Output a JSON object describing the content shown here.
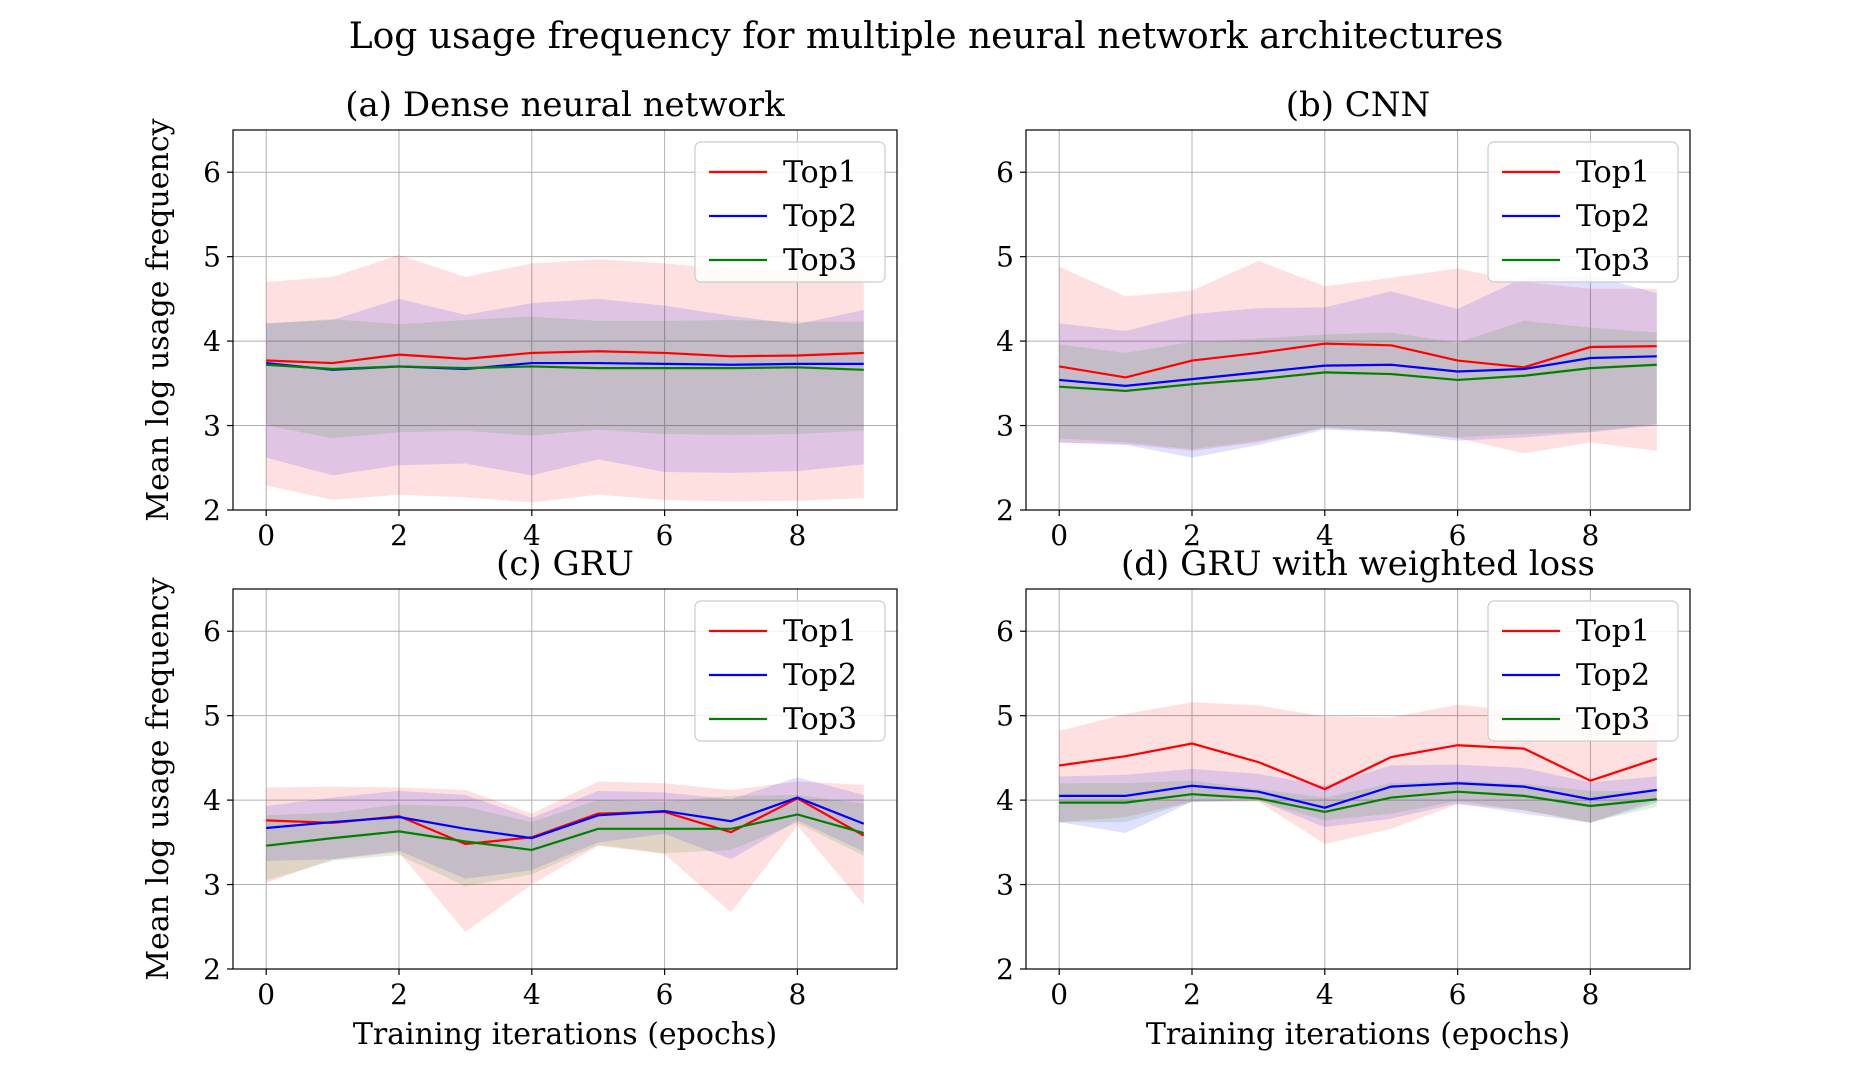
{
  "figure": {
    "title": "Log usage frequency for multiple neural network architectures"
  },
  "chart_data": [
    {
      "type": "line",
      "title": "(a) Dense neural network",
      "xlabel": "",
      "ylabel": "Mean log usage frequency",
      "xlim": [
        -0.5,
        9.5
      ],
      "ylim": [
        2,
        6.5
      ],
      "xticks": [
        0,
        2,
        4,
        6,
        8
      ],
      "yticks": [
        2,
        3,
        4,
        5,
        6
      ],
      "grid": true,
      "legend": "top-right",
      "x": [
        0,
        1,
        2,
        3,
        4,
        5,
        6,
        7,
        8,
        9
      ],
      "series": [
        {
          "name": "Top1",
          "color": "#ff0000",
          "values": [
            3.77,
            3.74,
            3.84,
            3.79,
            3.86,
            3.88,
            3.86,
            3.82,
            3.83,
            3.86
          ],
          "lower": [
            2.29,
            2.12,
            2.18,
            2.15,
            2.09,
            2.18,
            2.12,
            2.1,
            2.11,
            2.14
          ],
          "upper": [
            4.7,
            4.76,
            5.02,
            4.76,
            4.92,
            4.97,
            4.92,
            4.85,
            4.83,
            4.83
          ]
        },
        {
          "name": "Top2",
          "color": "#0000ff",
          "values": [
            3.74,
            3.66,
            3.7,
            3.67,
            3.74,
            3.74,
            3.73,
            3.72,
            3.73,
            3.73
          ],
          "lower": [
            2.62,
            2.41,
            2.53,
            2.55,
            2.41,
            2.6,
            2.45,
            2.44,
            2.46,
            2.54
          ],
          "upper": [
            4.21,
            4.25,
            4.5,
            4.31,
            4.45,
            4.5,
            4.42,
            4.3,
            4.2,
            4.37
          ]
        },
        {
          "name": "Top3",
          "color": "#008000",
          "values": [
            3.72,
            3.67,
            3.7,
            3.68,
            3.7,
            3.68,
            3.68,
            3.68,
            3.69,
            3.66
          ],
          "lower": [
            3.0,
            2.85,
            2.92,
            2.94,
            2.88,
            2.95,
            2.9,
            2.89,
            2.9,
            2.94
          ],
          "upper": [
            4.21,
            4.26,
            4.2,
            4.25,
            4.29,
            4.24,
            4.24,
            4.25,
            4.23,
            4.23
          ]
        }
      ]
    },
    {
      "type": "line",
      "title": "(b) CNN",
      "xlabel": "",
      "ylabel": "",
      "xlim": [
        -0.5,
        9.5
      ],
      "ylim": [
        2,
        6.5
      ],
      "xticks": [
        0,
        2,
        4,
        6,
        8
      ],
      "yticks": [
        2,
        3,
        4,
        5,
        6
      ],
      "grid": true,
      "legend": "top-right",
      "x": [
        0,
        1,
        2,
        3,
        4,
        5,
        6,
        7,
        8,
        9
      ],
      "series": [
        {
          "name": "Top1",
          "color": "#ff0000",
          "values": [
            3.7,
            3.57,
            3.77,
            3.86,
            3.97,
            3.95,
            3.77,
            3.69,
            3.93,
            3.94
          ],
          "lower": [
            2.8,
            2.78,
            2.7,
            2.8,
            2.98,
            2.93,
            2.85,
            2.67,
            2.8,
            2.7
          ],
          "upper": [
            4.88,
            4.53,
            4.6,
            4.95,
            4.65,
            4.75,
            4.86,
            4.7,
            4.62,
            4.62
          ]
        },
        {
          "name": "Top2",
          "color": "#0000ff",
          "values": [
            3.54,
            3.47,
            3.55,
            3.63,
            3.71,
            3.72,
            3.64,
            3.67,
            3.8,
            3.82
          ],
          "lower": [
            2.8,
            2.77,
            2.62,
            2.77,
            2.95,
            2.92,
            2.82,
            2.86,
            2.92,
            3.0
          ],
          "upper": [
            4.21,
            4.12,
            4.32,
            4.39,
            4.4,
            4.59,
            4.38,
            4.75,
            4.78,
            4.57
          ]
        },
        {
          "name": "Top3",
          "color": "#008000",
          "values": [
            3.46,
            3.41,
            3.49,
            3.55,
            3.63,
            3.61,
            3.54,
            3.59,
            3.68,
            3.72
          ],
          "lower": [
            2.85,
            2.8,
            2.72,
            2.82,
            2.97,
            2.93,
            2.86,
            2.9,
            2.93,
            3.02
          ],
          "upper": [
            3.96,
            3.86,
            3.99,
            4.03,
            4.08,
            4.1,
            3.98,
            4.24,
            4.16,
            4.1
          ]
        }
      ]
    },
    {
      "type": "line",
      "title": "(c) GRU",
      "xlabel": "Training iterations (epochs)",
      "ylabel": "Mean log usage frequency",
      "xlim": [
        -0.5,
        9.5
      ],
      "ylim": [
        2,
        6.5
      ],
      "xticks": [
        0,
        2,
        4,
        6,
        8
      ],
      "yticks": [
        2,
        3,
        4,
        5,
        6
      ],
      "grid": true,
      "legend": "top-right",
      "x": [
        0,
        1,
        2,
        3,
        4,
        5,
        6,
        7,
        8,
        9
      ],
      "series": [
        {
          "name": "Top1",
          "color": "#ff0000",
          "values": [
            3.76,
            3.73,
            3.81,
            3.48,
            3.56,
            3.84,
            3.86,
            3.62,
            4.02,
            3.58
          ],
          "lower": [
            3.02,
            3.3,
            3.38,
            2.44,
            3.0,
            3.46,
            3.36,
            2.67,
            3.7,
            2.76
          ],
          "upper": [
            4.15,
            4.16,
            4.15,
            4.12,
            3.84,
            4.22,
            4.2,
            4.12,
            4.22,
            4.18
          ]
        },
        {
          "name": "Top2",
          "color": "#0000ff",
          "values": [
            3.67,
            3.74,
            3.8,
            3.66,
            3.55,
            3.82,
            3.87,
            3.75,
            4.03,
            3.72
          ],
          "lower": [
            3.28,
            3.3,
            3.4,
            3.07,
            3.17,
            3.5,
            3.6,
            3.3,
            3.76,
            3.39
          ],
          "upper": [
            3.93,
            4.03,
            4.11,
            4.06,
            3.79,
            4.11,
            4.09,
            4.01,
            4.27,
            4.06
          ]
        },
        {
          "name": "Top3",
          "color": "#008000",
          "values": [
            3.46,
            3.55,
            3.63,
            3.51,
            3.41,
            3.66,
            3.66,
            3.66,
            3.83,
            3.61
          ],
          "lower": [
            3.05,
            3.28,
            3.35,
            2.98,
            3.12,
            3.47,
            3.37,
            3.41,
            3.73,
            3.34
          ],
          "upper": [
            3.82,
            3.85,
            3.95,
            3.92,
            3.74,
            4.0,
            3.98,
            4.05,
            4.06,
            3.96
          ]
        }
      ]
    },
    {
      "type": "line",
      "title": "(d) GRU with weighted loss",
      "xlabel": "Training iterations (epochs)",
      "ylabel": "",
      "xlim": [
        -0.5,
        9.5
      ],
      "ylim": [
        2,
        6.5
      ],
      "xticks": [
        0,
        2,
        4,
        6,
        8
      ],
      "yticks": [
        2,
        3,
        4,
        5,
        6
      ],
      "grid": true,
      "legend": "top-right",
      "x": [
        0,
        1,
        2,
        3,
        4,
        5,
        6,
        7,
        8,
        9
      ],
      "series": [
        {
          "name": "Top1",
          "color": "#ff0000",
          "values": [
            4.41,
            4.52,
            4.67,
            4.45,
            4.13,
            4.51,
            4.65,
            4.61,
            4.23,
            4.49
          ],
          "lower": [
            3.74,
            3.8,
            3.98,
            3.98,
            3.48,
            3.66,
            3.95,
            3.88,
            3.73,
            4.01
          ],
          "upper": [
            4.82,
            5.02,
            5.16,
            5.12,
            4.99,
            4.98,
            5.13,
            5.05,
            4.97,
            4.92
          ]
        },
        {
          "name": "Top2",
          "color": "#0000ff",
          "values": [
            4.05,
            4.05,
            4.17,
            4.1,
            3.91,
            4.16,
            4.2,
            4.16,
            4.01,
            4.12
          ],
          "lower": [
            3.74,
            3.61,
            3.98,
            4.0,
            3.68,
            3.78,
            3.96,
            3.84,
            3.73,
            3.97
          ],
          "upper": [
            4.28,
            4.3,
            4.37,
            4.31,
            4.17,
            4.41,
            4.42,
            4.38,
            4.21,
            4.28
          ]
        },
        {
          "name": "Top3",
          "color": "#008000",
          "values": [
            3.97,
            3.97,
            4.07,
            4.02,
            3.86,
            4.03,
            4.1,
            4.05,
            3.93,
            4.01
          ],
          "lower": [
            3.74,
            3.74,
            3.98,
            3.99,
            3.76,
            3.84,
            3.99,
            3.88,
            3.74,
            3.92
          ],
          "upper": [
            4.2,
            4.2,
            4.23,
            4.13,
            4.03,
            4.2,
            4.23,
            4.19,
            4.11,
            4.1
          ]
        }
      ]
    }
  ]
}
